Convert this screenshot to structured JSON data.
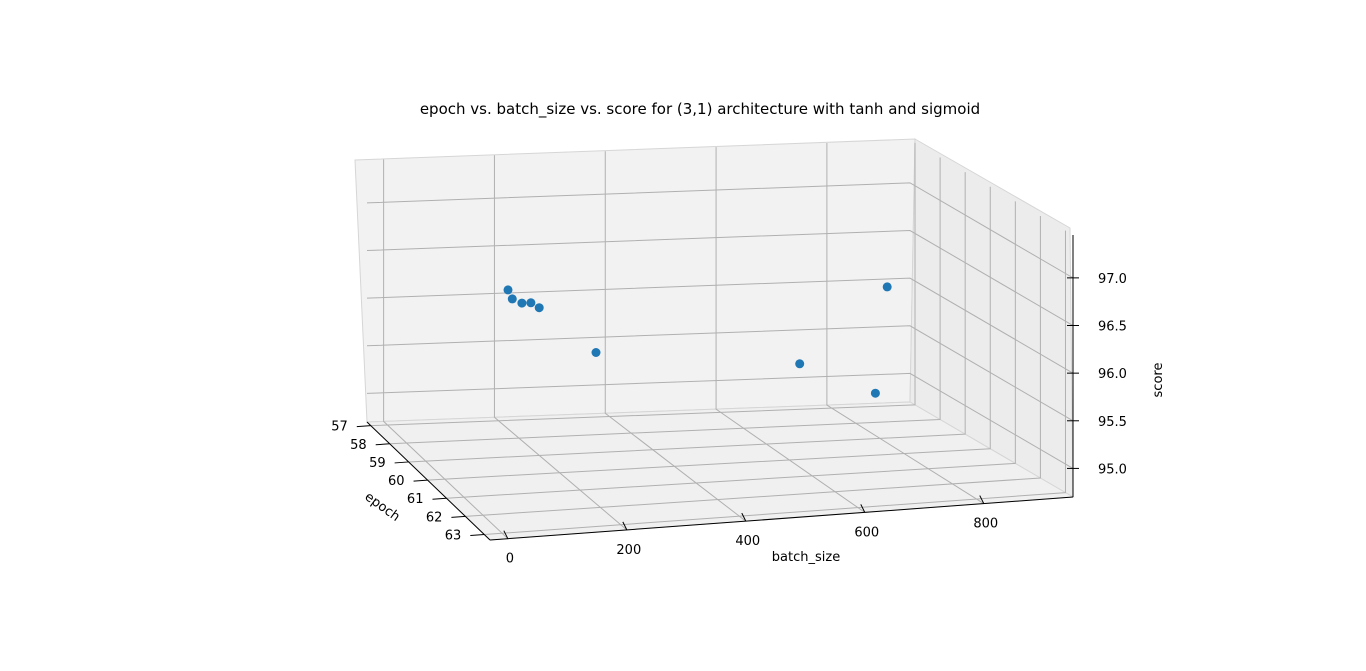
{
  "chart_data": {
    "type": "scatter",
    "projection": "3d",
    "title": "epoch vs. batch_size vs. score for (3,1) architecture with tanh and sigmoid",
    "xlabel": "epoch",
    "ylabel": "batch_size",
    "zlabel": "score",
    "xticks": [
      "57",
      "58",
      "59",
      "60",
      "61",
      "62",
      "63"
    ],
    "yticks": [
      "0",
      "200",
      "400",
      "600",
      "800"
    ],
    "zticks": [
      "95.0",
      "95.5",
      "96.0",
      "96.5",
      "97.0"
    ],
    "xlim": [
      56.8,
      63.3
    ],
    "ylim": [
      -30,
      950
    ],
    "zlim": [
      94.7,
      97.45
    ],
    "grid": true,
    "color": "#1f77b4",
    "points": [
      {
        "epoch": 63,
        "batch_size": 10,
        "score": 97.25
      },
      {
        "epoch": 62,
        "batch_size": 50,
        "score": 96.95
      },
      {
        "epoch": 61,
        "batch_size": 100,
        "score": 96.7
      },
      {
        "epoch": 60,
        "batch_size": 150,
        "score": 96.5
      },
      {
        "epoch": 59,
        "batch_size": 200,
        "score": 96.25
      },
      {
        "epoch": 59,
        "batch_size": 300,
        "score": 95.75
      },
      {
        "epoch": 60,
        "batch_size": 750,
        "score": 95.35
      },
      {
        "epoch": 58,
        "batch_size": 700,
        "score": 95.35
      },
      {
        "epoch": 57,
        "batch_size": 900,
        "score": 95.95
      }
    ]
  }
}
